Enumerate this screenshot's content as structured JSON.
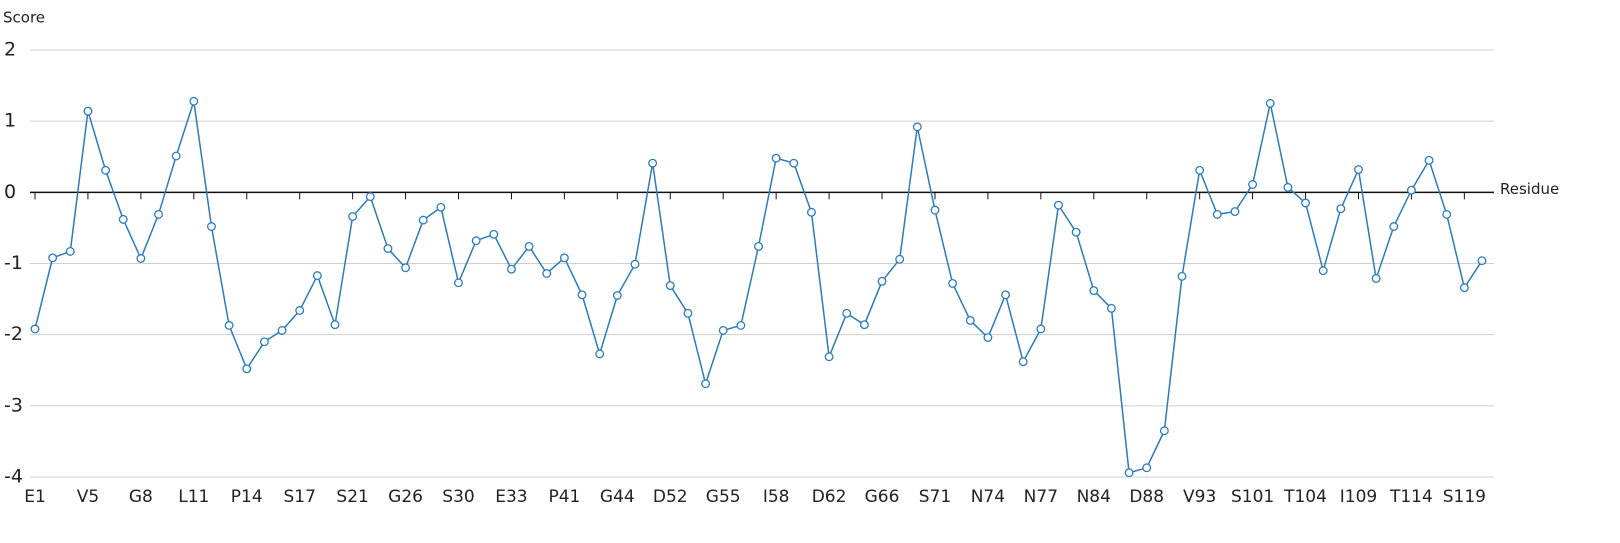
{
  "chart_data": {
    "type": "line",
    "y_label": "Score",
    "x_label": "Residue",
    "categories": [
      "E1",
      null,
      null,
      "V5",
      null,
      null,
      "G8",
      null,
      null,
      "L11",
      null,
      null,
      "P14",
      null,
      null,
      "S17",
      null,
      null,
      "S21",
      null,
      null,
      "G26",
      null,
      null,
      "S30",
      null,
      null,
      "E33",
      null,
      null,
      "P41",
      null,
      null,
      "G44",
      null,
      null,
      "D52",
      null,
      null,
      "G55",
      null,
      null,
      "I58",
      null,
      null,
      "D62",
      null,
      null,
      "G66",
      null,
      null,
      "S71",
      null,
      null,
      "N74",
      null,
      null,
      "N77",
      null,
      null,
      "N84",
      null,
      null,
      "D88",
      null,
      null,
      "V93",
      null,
      null,
      "S101",
      null,
      null,
      "T104",
      null,
      null,
      "I109",
      null,
      null,
      "T114",
      null,
      null,
      "S119",
      null
    ],
    "series": [
      {
        "color": "#2b7bbd",
        "values": [
          -1.92,
          -0.92,
          -0.83,
          1.14,
          0.31,
          -0.38,
          -0.93,
          -0.31,
          0.51,
          1.28,
          -0.48,
          -1.87,
          -2.48,
          -2.1,
          -1.94,
          -1.66,
          -1.17,
          -1.86,
          -0.34,
          -0.06,
          -0.79,
          -1.06,
          -0.39,
          -0.21,
          -1.27,
          -0.68,
          -0.59,
          -1.08,
          -0.76,
          -1.14,
          -0.92,
          -1.44,
          -2.27,
          -1.45,
          -1.01,
          0.41,
          -1.31,
          -1.7,
          -2.69,
          -1.94,
          -1.87,
          -0.76,
          0.48,
          0.41,
          -0.28,
          -2.31,
          -1.7,
          -1.86,
          -1.25,
          -0.94,
          0.92,
          -0.25,
          -1.28,
          -1.8,
          -2.04,
          -1.44,
          -2.38,
          -1.92,
          -0.18,
          -0.56,
          -1.38,
          -1.63,
          -3.94,
          -3.87,
          -3.35,
          -1.18,
          0.31,
          -0.31,
          -0.27,
          0.11,
          1.25,
          0.07,
          -0.15,
          -1.1,
          -0.23,
          0.32,
          -1.21,
          -0.48,
          0.03,
          0.45,
          -0.31,
          -1.34,
          -0.96
        ]
      }
    ],
    "ylim": [
      -4,
      2
    ],
    "yticks": [
      -4,
      -3,
      -2,
      -1,
      0,
      1,
      2
    ],
    "grid": true
  }
}
